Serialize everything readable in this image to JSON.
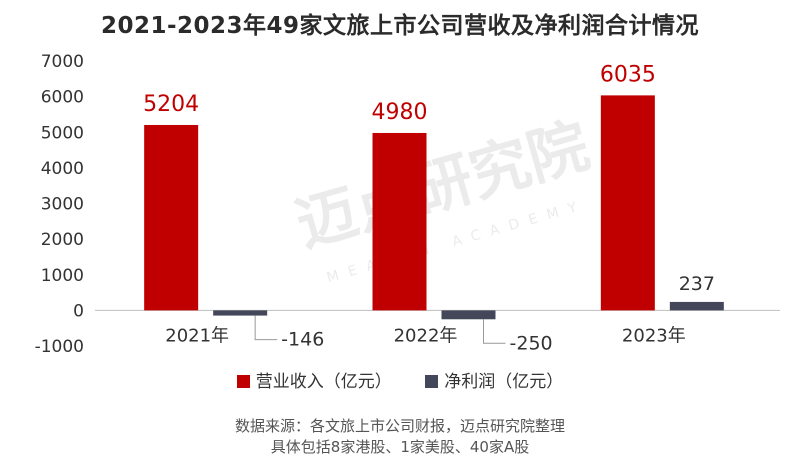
{
  "title": "2021-2023年49家文旅上市公司营收及净利润合计情况",
  "watermark": {
    "main": "迈点研究院",
    "sub": "MEADIN ACADEMY"
  },
  "legend": [
    {
      "label": "营业收入（亿元）",
      "color": "#c00000"
    },
    {
      "label": "净利润（亿元）",
      "color": "#44475a"
    }
  ],
  "source": [
    "数据来源：各文旅上市公司财报，迈点研究院整理",
    "具体包括8家港股、1家美股、40家A股"
  ],
  "chart_data": {
    "type": "bar",
    "categories": [
      "2021年",
      "2022年",
      "2023年"
    ],
    "series": [
      {
        "name": "营业收入（亿元）",
        "values": [
          5204,
          4980,
          6035
        ],
        "color": "#c00000"
      },
      {
        "name": "净利润（亿元）",
        "values": [
          -146,
          -250,
          237
        ],
        "color": "#44475a"
      }
    ],
    "yticks": [
      "-1000",
      "0",
      "1000",
      "2000",
      "3000",
      "4000",
      "5000",
      "6000",
      "7000"
    ],
    "ylim": [
      -1000,
      7000
    ],
    "grid": false,
    "legend_position": "bottom"
  }
}
